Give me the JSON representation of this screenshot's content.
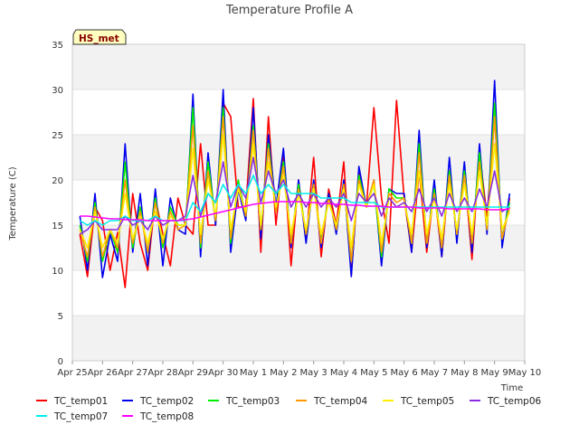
{
  "chart_data": {
    "type": "line",
    "title": "Temperature Profile A",
    "xlabel": "Time",
    "ylabel": "Temperature (C)",
    "badge": "HS_met",
    "ylim": [
      0,
      35
    ],
    "yticks": [
      0,
      5,
      10,
      15,
      20,
      25,
      30,
      35
    ],
    "xlim": [
      0,
      15
    ],
    "xtick_labels": [
      "Apr 25",
      "Apr 26",
      "Apr 27",
      "Apr 28",
      "Apr 29",
      "Apr 30",
      "May 1",
      "May 2",
      "May 3",
      "May 4",
      "May 5",
      "May 6",
      "May 7",
      "May 8",
      "May 9",
      "May 10"
    ],
    "grid": "horizontal bands",
    "legend_position": "bottom",
    "x_note": "x values are days since Apr 25 00:00 (15-day axis)",
    "series": [
      {
        "name": "TC_temp01",
        "color": "#ff0000",
        "x": [
          0.25,
          0.5,
          0.75,
          1.0,
          1.25,
          1.5,
          1.75,
          2.0,
          2.25,
          2.5,
          2.75,
          3.0,
          3.25,
          3.5,
          3.75,
          4.0,
          4.25,
          4.5,
          4.75,
          5.0,
          5.25,
          5.5,
          5.75,
          6.0,
          6.25,
          6.5,
          6.75,
          7.0,
          7.25,
          7.5,
          7.75,
          8.0,
          8.25,
          8.5,
          8.75,
          9.0,
          9.25,
          9.5,
          9.75,
          10.0,
          10.25,
          10.5,
          10.75,
          11.0,
          11.25,
          11.5,
          11.75,
          12.0,
          12.25,
          12.5,
          12.75,
          13.0,
          13.25,
          13.5,
          13.75,
          14.0,
          14.25,
          14.5
        ],
        "y": [
          14,
          9.3,
          17,
          15.5,
          10,
          14.2,
          8.1,
          18.5,
          13,
          10,
          18,
          14,
          10.5,
          18,
          15,
          14,
          24,
          15,
          15,
          28.5,
          27,
          17,
          17,
          29,
          12,
          27,
          15,
          23,
          10.5,
          20,
          13.5,
          22.5,
          11.5,
          19,
          15,
          22,
          9.5,
          21,
          17,
          28,
          18,
          13,
          28.8,
          18,
          12,
          21,
          12,
          19,
          11.5,
          21,
          14,
          21,
          11.2,
          23,
          16,
          27,
          13,
          18
        ]
      },
      {
        "name": "TC_temp02",
        "color": "#0000ee",
        "x": [
          0.25,
          0.5,
          0.75,
          1.0,
          1.25,
          1.5,
          1.75,
          2.0,
          2.25,
          2.5,
          2.75,
          3.0,
          3.25,
          3.5,
          3.75,
          4.0,
          4.25,
          4.5,
          4.75,
          5.0,
          5.25,
          5.5,
          5.75,
          6.0,
          6.25,
          6.5,
          6.75,
          7.0,
          7.25,
          7.5,
          7.75,
          8.0,
          8.25,
          8.5,
          8.75,
          9.0,
          9.25,
          9.5,
          9.75,
          10.0,
          10.25,
          10.5,
          10.75,
          11.0,
          11.25,
          11.5,
          11.75,
          12.0,
          12.25,
          12.5,
          12.75,
          13.0,
          13.25,
          13.5,
          13.75,
          14.0,
          14.25,
          14.5
        ],
        "y": [
          16,
          10,
          18.5,
          9.2,
          14,
          11,
          24,
          12,
          18.5,
          10.5,
          19,
          10.5,
          18,
          14.5,
          14,
          29.5,
          11.5,
          23,
          15,
          30,
          12,
          19,
          15.5,
          28,
          13.5,
          25,
          17,
          23.5,
          12.5,
          20,
          13,
          20,
          12.5,
          18.5,
          14,
          20,
          9.3,
          21.5,
          17,
          20,
          10.5,
          19,
          18.5,
          18.5,
          12,
          25.5,
          12.5,
          20,
          11.5,
          22.5,
          13,
          22,
          12,
          24,
          14,
          31,
          12.5,
          18.5
        ]
      },
      {
        "name": "TC_temp03",
        "color": "#00ee00",
        "x": [
          0.25,
          0.5,
          0.75,
          1.0,
          1.25,
          1.5,
          1.75,
          2.0,
          2.25,
          2.5,
          2.75,
          3.0,
          3.25,
          3.5,
          3.75,
          4.0,
          4.25,
          4.5,
          4.75,
          5.0,
          5.25,
          5.5,
          5.75,
          6.0,
          6.25,
          6.5,
          6.75,
          7.0,
          7.25,
          7.5,
          7.75,
          8.0,
          8.25,
          8.5,
          8.75,
          9.0,
          9.25,
          9.5,
          9.75,
          10.0,
          10.25,
          10.5,
          10.75,
          11.0,
          11.25,
          11.5,
          11.75,
          12.0,
          12.25,
          12.5,
          12.75,
          13.0,
          13.25,
          13.5,
          13.75,
          14.0,
          14.25,
          14.5
        ],
        "y": [
          15,
          11,
          17.5,
          11,
          14.5,
          12,
          22,
          12.5,
          17,
          12,
          18,
          12.5,
          17,
          15,
          15,
          28,
          12.5,
          22,
          15.5,
          28,
          13,
          20,
          16,
          26,
          14.5,
          24,
          16.5,
          22,
          13,
          19.5,
          14,
          19.5,
          13.5,
          18,
          14.5,
          19.5,
          11,
          20.5,
          17,
          19.5,
          11.5,
          19,
          18,
          18,
          13,
          24,
          13,
          19,
          12.5,
          21,
          14,
          21,
          13,
          23,
          14.5,
          28.5,
          13.5,
          17.5
        ]
      },
      {
        "name": "TC_temp04",
        "color": "#ff9900",
        "x": [
          0.25,
          0.5,
          0.75,
          1.0,
          1.25,
          1.5,
          1.75,
          2.0,
          2.25,
          2.5,
          2.75,
          3.0,
          3.25,
          3.5,
          3.75,
          4.0,
          4.25,
          4.5,
          4.75,
          5.0,
          5.25,
          5.5,
          5.75,
          6.0,
          6.25,
          6.5,
          6.75,
          7.0,
          7.25,
          7.5,
          7.75,
          8.0,
          8.25,
          8.5,
          8.75,
          9.0,
          9.25,
          9.5,
          9.75,
          10.0,
          10.25,
          10.5,
          10.75,
          11.0,
          11.25,
          11.5,
          11.75,
          12.0,
          12.25,
          12.5,
          12.75,
          13.0,
          13.25,
          13.5,
          13.75,
          14.0,
          14.25,
          14.5
        ],
        "y": [
          14.5,
          11.5,
          17,
          11.5,
          14.5,
          12.5,
          20,
          13,
          16.5,
          12,
          17.5,
          13,
          16.5,
          14.5,
          15,
          26,
          13,
          21,
          15.5,
          27,
          13.5,
          19.5,
          16,
          25.5,
          14.5,
          23.5,
          16.5,
          21.5,
          13,
          19,
          14,
          19.5,
          13,
          18,
          14.5,
          19.5,
          11,
          20,
          17,
          20,
          12,
          18.5,
          17.5,
          18,
          13,
          23,
          13,
          18.5,
          12.5,
          20.5,
          14,
          20.5,
          13,
          22,
          14.5,
          27,
          13.5,
          17
        ]
      },
      {
        "name": "TC_temp05",
        "color": "#ffee00",
        "x": [
          0.25,
          0.5,
          0.75,
          1.0,
          1.25,
          1.5,
          1.75,
          2.0,
          2.25,
          2.5,
          2.75,
          3.0,
          3.25,
          3.5,
          3.75,
          4.0,
          4.25,
          4.5,
          4.75,
          5.0,
          5.25,
          5.5,
          5.75,
          6.0,
          6.25,
          6.5,
          6.75,
          7.0,
          7.25,
          7.5,
          7.75,
          8.0,
          8.25,
          8.5,
          8.75,
          9.0,
          9.25,
          9.5,
          9.75,
          10.0,
          10.25,
          10.5,
          10.75,
          11.0,
          11.25,
          11.5,
          11.75,
          12.0,
          12.25,
          12.5,
          12.75,
          13.0,
          13.25,
          13.5,
          13.75,
          14.0,
          14.25,
          14.5
        ],
        "y": [
          14.5,
          12.5,
          16.5,
          12.5,
          14.5,
          13,
          18.5,
          13.5,
          16,
          13,
          16.5,
          13.5,
          16,
          15,
          15,
          23.5,
          14,
          20,
          16,
          25,
          14.5,
          19,
          16.5,
          24,
          15,
          22,
          17,
          20.5,
          14,
          18.5,
          14.5,
          19,
          14,
          17.5,
          15,
          19,
          12.5,
          19.5,
          17,
          19.5,
          13,
          18,
          17,
          17.5,
          14,
          21,
          14,
          18,
          13.5,
          19.5,
          14.5,
          19.5,
          14,
          21,
          15,
          24,
          14.5,
          16.5
        ]
      },
      {
        "name": "TC_temp06",
        "color": "#8a2be2",
        "x": [
          0.25,
          0.5,
          0.75,
          1.0,
          1.25,
          1.5,
          1.75,
          2.0,
          2.25,
          2.5,
          2.75,
          3.0,
          3.25,
          3.5,
          3.75,
          4.0,
          4.25,
          4.5,
          4.75,
          5.0,
          5.25,
          5.5,
          5.75,
          6.0,
          6.25,
          6.5,
          6.75,
          7.0,
          7.25,
          7.5,
          7.75,
          8.0,
          8.25,
          8.5,
          8.75,
          9.0,
          9.25,
          9.5,
          9.75,
          10.0,
          10.25,
          10.5,
          10.75,
          11.0,
          11.25,
          11.5,
          11.75,
          12.0,
          12.25,
          12.5,
          12.75,
          13.0,
          13.25,
          13.5,
          13.75,
          14.0,
          14.25,
          14.5
        ],
        "y": [
          14,
          14.5,
          15.5,
          14.5,
          14.5,
          14.5,
          16,
          15,
          15.5,
          14.5,
          16,
          15,
          15.5,
          15.5,
          16,
          20.5,
          16,
          18.5,
          17.5,
          22,
          17,
          19.5,
          18,
          22.5,
          17.5,
          21,
          18.5,
          20,
          17,
          18.5,
          17,
          18.5,
          17,
          18,
          17,
          18.5,
          15.5,
          18.5,
          17.5,
          18.5,
          16,
          18,
          17,
          17.5,
          16.5,
          19,
          16.5,
          18,
          16,
          18.5,
          16.5,
          18,
          16.5,
          19,
          17,
          21,
          16.5,
          17
        ]
      },
      {
        "name": "TC_temp07",
        "color": "#00eeee",
        "x": [
          0.25,
          0.5,
          0.75,
          1.0,
          1.25,
          1.5,
          1.75,
          2.0,
          2.25,
          2.5,
          2.75,
          3.0,
          3.25,
          3.5,
          3.75,
          4.0,
          4.25,
          4.5,
          4.75,
          5.0,
          5.25,
          5.5,
          5.75,
          6.0,
          6.25,
          6.5,
          6.75,
          7.0,
          7.25,
          7.5,
          7.75,
          8.0,
          8.25,
          8.5,
          8.75,
          9.0,
          9.25,
          9.5,
          9.75,
          10.0,
          10.25,
          10.5,
          10.75,
          11.0,
          11.25,
          11.5,
          11.75,
          12.0,
          12.25,
          12.5,
          12.75,
          13.0,
          13.25,
          13.5,
          13.75,
          14.0,
          14.25,
          14.5
        ],
        "y": [
          15.5,
          15,
          15.5,
          15,
          15.5,
          15.5,
          16,
          15.5,
          15.5,
          15.5,
          16,
          15.5,
          15.5,
          15.5,
          15.5,
          17.5,
          16.5,
          18.5,
          17.5,
          19.5,
          18,
          19.5,
          18.5,
          20.5,
          18.5,
          19.5,
          18.5,
          19.5,
          18.5,
          18.5,
          18.5,
          18.5,
          18,
          18,
          18,
          18,
          17.5,
          17.5,
          17.5,
          17.5,
          17,
          17,
          17,
          17,
          17,
          17,
          17,
          17,
          17,
          17,
          17,
          17,
          17,
          17,
          17,
          17,
          17,
          17
        ]
      },
      {
        "name": "TC_temp08",
        "color": "#ff00ff",
        "x": [
          0.25,
          0.5,
          0.75,
          1.0,
          1.25,
          1.5,
          1.75,
          2.0,
          2.25,
          2.5,
          2.75,
          3.0,
          3.25,
          3.5,
          3.75,
          4.0,
          4.25,
          4.5,
          4.75,
          5.0,
          5.25,
          5.5,
          5.75,
          6.0,
          6.25,
          6.5,
          6.75,
          7.0,
          7.25,
          7.5,
          7.75,
          8.0,
          8.25,
          8.5,
          8.75,
          9.0,
          9.25,
          9.5,
          9.75,
          10.0,
          10.25,
          10.5,
          10.75,
          11.0,
          11.25,
          11.5,
          11.75,
          12.0,
          12.25,
          12.5,
          12.75,
          13.0,
          13.25,
          13.5,
          13.75,
          14.0,
          14.25,
          14.5
        ],
        "y": [
          16.0,
          16.0,
          15.9,
          15.8,
          15.7,
          15.7,
          15.6,
          15.6,
          15.6,
          15.5,
          15.5,
          15.5,
          15.5,
          15.5,
          15.6,
          15.7,
          15.9,
          16.1,
          16.3,
          16.5,
          16.7,
          16.9,
          17.1,
          17.3,
          17.4,
          17.5,
          17.6,
          17.6,
          17.6,
          17.6,
          17.5,
          17.5,
          17.4,
          17.4,
          17.3,
          17.3,
          17.2,
          17.2,
          17.1,
          17.1,
          17.1,
          17.0,
          17.0,
          17.0,
          17.0,
          16.9,
          16.9,
          16.9,
          16.9,
          16.8,
          16.8,
          16.8,
          16.8,
          16.8,
          16.7,
          16.7,
          16.7,
          16.8
        ]
      }
    ]
  }
}
